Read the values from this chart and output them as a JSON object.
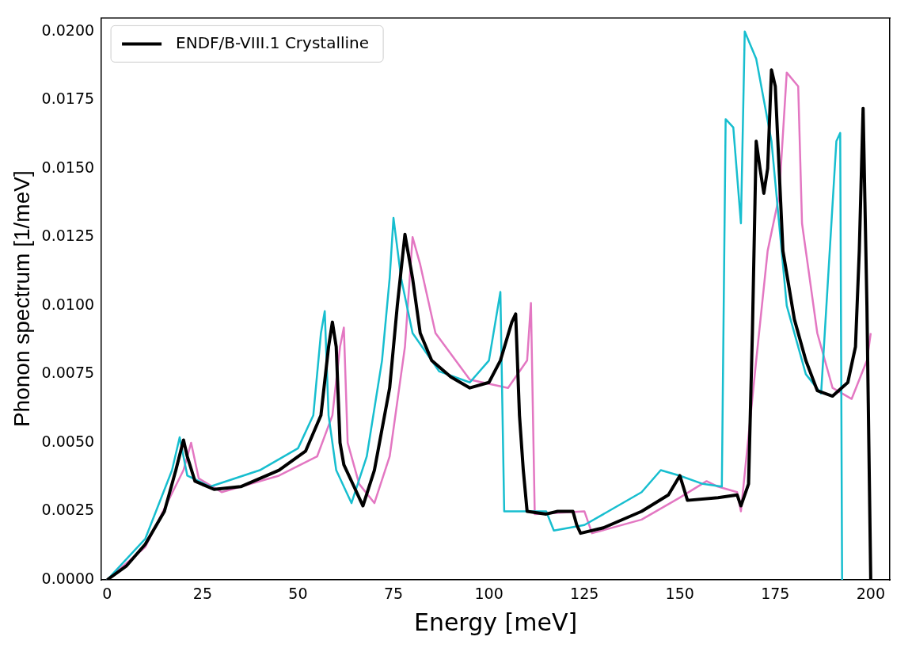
{
  "chart_data": {
    "type": "line",
    "xlabel": "Energy [meV]",
    "ylabel": "Phonon spectrum [1/meV]",
    "xlim": [
      -1.5,
      205
    ],
    "ylim": [
      0,
      0.0205
    ],
    "xticks": [
      0,
      25,
      50,
      75,
      100,
      125,
      150,
      175,
      200
    ],
    "yticks": [
      {
        "value": 0,
        "label": "0.0000"
      },
      {
        "value": 0.0025,
        "label": "0.0025"
      },
      {
        "value": 0.005,
        "label": "0.0050"
      },
      {
        "value": 0.0075,
        "label": "0.0075"
      },
      {
        "value": 0.01,
        "label": "0.0100"
      },
      {
        "value": 0.0125,
        "label": "0.0125"
      },
      {
        "value": 0.015,
        "label": "0.0150"
      },
      {
        "value": 0.0175,
        "label": "0.0175"
      },
      {
        "value": 0.02,
        "label": "0.0200"
      }
    ],
    "grid": false,
    "legend": "top left",
    "marker": "none",
    "line_style": "solid",
    "series": [
      {
        "color": "#17becf",
        "x": [
          0,
          10,
          17,
          19,
          21,
          27,
          40,
          50,
          54,
          56,
          57,
          58,
          60,
          64,
          68,
          72,
          74,
          75,
          77,
          80,
          87,
          95,
          100,
          103,
          104,
          115,
          117,
          125,
          140,
          145,
          150,
          156,
          161,
          162,
          164,
          166,
          167,
          170,
          174,
          178,
          183,
          187,
          191,
          192,
          192.5
        ],
        "values": [
          0,
          0.0015,
          0.004,
          0.0052,
          0.0038,
          0.0034,
          0.004,
          0.0048,
          0.006,
          0.009,
          0.0098,
          0.006,
          0.004,
          0.0028,
          0.0045,
          0.008,
          0.011,
          0.0132,
          0.011,
          0.009,
          0.0076,
          0.0072,
          0.008,
          0.0105,
          0.0025,
          0.0025,
          0.0018,
          0.002,
          0.0032,
          0.004,
          0.0038,
          0.0035,
          0.0034,
          0.0168,
          0.0165,
          0.013,
          0.02,
          0.019,
          0.016,
          0.01,
          0.0075,
          0.0068,
          0.016,
          0.0163,
          0
        ]
      },
      {
        "color": "#e377c2",
        "x": [
          0,
          10,
          20,
          22,
          24,
          30,
          45,
          55,
          59,
          61,
          62,
          63,
          66,
          70,
          74,
          78,
          80,
          82,
          86,
          95,
          105,
          110,
          111,
          112,
          125,
          127,
          140,
          150,
          157,
          160,
          165,
          166,
          170,
          173,
          176,
          178,
          181,
          182,
          186,
          190,
          195,
          199,
          200
        ],
        "values": [
          0,
          0.0012,
          0.004,
          0.005,
          0.0037,
          0.0032,
          0.0038,
          0.0045,
          0.006,
          0.0085,
          0.0092,
          0.005,
          0.0035,
          0.0028,
          0.0045,
          0.0085,
          0.0125,
          0.0115,
          0.009,
          0.0073,
          0.007,
          0.008,
          0.0101,
          0.0024,
          0.0025,
          0.0017,
          0.0022,
          0.003,
          0.0036,
          0.0034,
          0.0032,
          0.0025,
          0.008,
          0.012,
          0.014,
          0.0185,
          0.018,
          0.013,
          0.009,
          0.007,
          0.0066,
          0.008,
          0.009
        ]
      },
      {
        "name": "ENDF/B-VIII.1 Crystalline",
        "color": "#000000",
        "x": [
          0,
          5,
          10,
          15,
          18,
          20,
          21,
          23,
          28,
          35,
          45,
          52,
          56,
          58,
          59,
          60,
          61,
          62,
          65,
          67,
          70,
          74,
          76,
          78,
          80,
          82,
          85,
          90,
          95,
          100,
          103,
          106,
          107,
          108,
          109,
          110,
          115,
          118,
          122,
          123,
          124,
          130,
          140,
          147,
          150,
          152,
          160,
          165,
          166,
          168,
          169,
          170,
          171,
          172,
          173,
          174,
          175,
          177,
          180,
          183,
          186,
          190,
          194,
          196,
          197,
          198,
          199,
          200
        ],
        "values": [
          0,
          0.0005,
          0.0013,
          0.0025,
          0.004,
          0.0051,
          0.0045,
          0.0036,
          0.0033,
          0.0034,
          0.004,
          0.0047,
          0.006,
          0.0085,
          0.0094,
          0.0085,
          0.005,
          0.0042,
          0.0033,
          0.0027,
          0.004,
          0.007,
          0.01,
          0.0126,
          0.011,
          0.009,
          0.008,
          0.0074,
          0.007,
          0.0072,
          0.008,
          0.0094,
          0.0097,
          0.006,
          0.004,
          0.0025,
          0.0024,
          0.0025,
          0.0025,
          0.002,
          0.0017,
          0.0019,
          0.0025,
          0.0031,
          0.0038,
          0.0029,
          0.003,
          0.0031,
          0.0027,
          0.0035,
          0.009,
          0.016,
          0.015,
          0.0141,
          0.015,
          0.0186,
          0.018,
          0.012,
          0.0095,
          0.008,
          0.0069,
          0.0067,
          0.0072,
          0.0085,
          0.012,
          0.0172,
          0.01,
          0
        ]
      }
    ]
  }
}
